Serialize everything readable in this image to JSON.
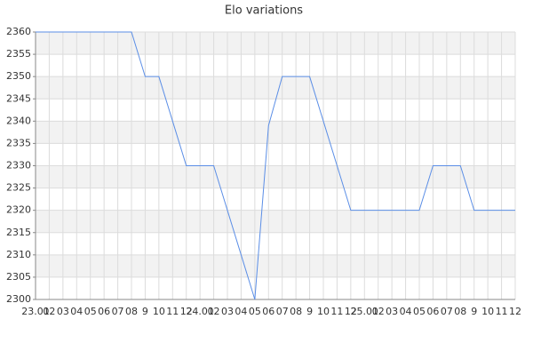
{
  "chart_data": {
    "type": "line",
    "title": "Elo variations",
    "categories": [
      "23.01",
      "02",
      "03",
      "04",
      "05",
      "06",
      "07",
      "08",
      "9",
      "10",
      "11",
      "12",
      "24.01",
      "02",
      "03",
      "04",
      "05",
      "06",
      "07",
      "08",
      "9",
      "10",
      "11",
      "12",
      "25.01",
      "02",
      "03",
      "04",
      "05",
      "06",
      "07",
      "08",
      "9",
      "10",
      "11",
      "12"
    ],
    "values": [
      2360,
      2360,
      2360,
      2360,
      2360,
      2360,
      2360,
      2360,
      2350,
      2350,
      2340,
      2330,
      2330,
      2330,
      2320,
      2310,
      2300,
      2339,
      2350,
      2350,
      2350,
      2340,
      2330,
      2320,
      2320,
      2320,
      2320,
      2320,
      2320,
      2330,
      2330,
      2330,
      2320,
      2320,
      2320,
      2320
    ],
    "color": "#5b8ee6",
    "ylim": [
      2300,
      2360
    ],
    "yticks": [
      2300,
      2305,
      2310,
      2315,
      2320,
      2325,
      2330,
      2335,
      2340,
      2345,
      2350,
      2355,
      2360
    ],
    "grid": true
  }
}
